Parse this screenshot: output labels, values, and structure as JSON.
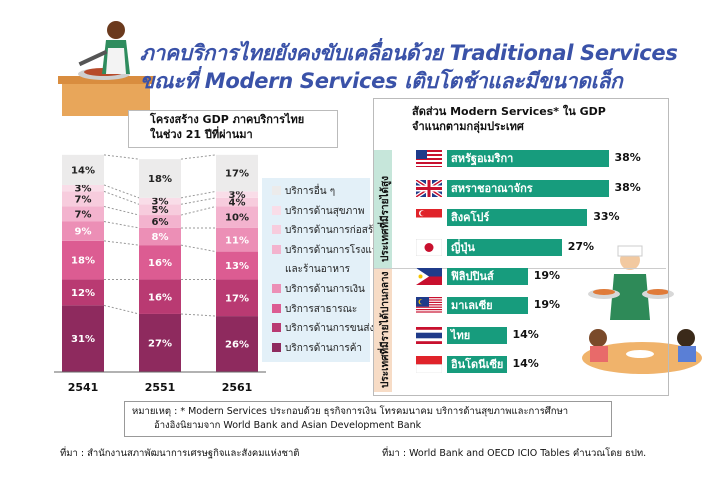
{
  "title_line1": "ภาคบริการไทยยังคงขับเคลื่อนด้วย Traditional Services",
  "title_line2": "ขณะที่ Modern Services เติบโตช้าและมีขนาดเล็ก",
  "chart_data": [
    {
      "type": "bar",
      "stacked": true,
      "title": "โครงสร้าง GDP ภาคบริการไทย ในช่วง 21 ปีที่ผ่านมา",
      "categories": [
        "2541",
        "2551",
        "2561"
      ],
      "unit": "%",
      "series": [
        {
          "name": "บริการด้านการค้า",
          "values": [
            31,
            27,
            26
          ],
          "color": "#8e2a5e"
        },
        {
          "name": "บริการด้านการขนส่ง",
          "values": [
            12,
            16,
            17
          ],
          "color": "#b93a72"
        },
        {
          "name": "บริการสาธารณะ",
          "values": [
            18,
            16,
            13
          ],
          "color": "#dc5c92"
        },
        {
          "name": "บริการด้านการเงิน",
          "values": [
            9,
            8,
            11
          ],
          "color": "#ec8fb6"
        },
        {
          "name": "บริการด้านการโรงแรมและร้านอาหาร",
          "values": [
            7,
            6,
            10
          ],
          "color": "#f3b3ce"
        },
        {
          "name": "บริการด้านการก่อสร้าง",
          "values": [
            7,
            5,
            4
          ],
          "color": "#f7ccdd"
        },
        {
          "name": "บริการด้านสุขภาพ",
          "values": [
            3,
            3,
            3
          ],
          "color": "#f9dde8"
        },
        {
          "name": "บริการอื่น ๆ",
          "values": [
            14,
            18,
            17
          ],
          "color": "#ecebeb"
        }
      ],
      "labels_bottom_to_top": [
        [
          "31%",
          "12%",
          "18%",
          "9%",
          "7%",
          "7%",
          "3%",
          "14%"
        ],
        [
          "27%",
          "16%",
          "16%",
          "8%",
          "6%",
          "5%",
          "3%",
          "18%"
        ],
        [
          "26%",
          "17%",
          "13%",
          "11%",
          "10%",
          "4%",
          "3%",
          "17%"
        ]
      ],
      "legend_top_to_bottom": [
        "บริการอื่น ๆ",
        "บริการด้านสุขภาพ",
        "บริการด้านการก่อสร้าง",
        "บริการด้านการโรงแรม",
        "และร้านอาหาร",
        "บริการด้านการเงิน",
        "บริการสาธารณะ",
        "บริการด้านการขนส่ง",
        "บริการด้านการค้า"
      ]
    },
    {
      "type": "bar",
      "orientation": "horizontal",
      "title": "สัดส่วน Modern Services* ใน GDP จำแนกตามกลุ่มประเทศ",
      "xlim": [
        0,
        40
      ],
      "groups": [
        {
          "label": "ประเทศที่มีรายได้สูง",
          "countries": [
            {
              "name": "สหรัฐอเมริกา",
              "value": 38,
              "label": "38%",
              "flag": "us-flag"
            },
            {
              "name": "สหราชอาณาจักร",
              "value": 38,
              "label": "38%",
              "flag": "uk-flag"
            },
            {
              "name": "สิงคโปร์",
              "value": 33,
              "label": "33%",
              "flag": "singapore-flag"
            },
            {
              "name": "ญี่ปุ่น",
              "value": 27,
              "label": "27%",
              "flag": "japan-flag"
            }
          ]
        },
        {
          "label": "ประเทศที่มีรายได้ปานกลาง",
          "countries": [
            {
              "name": "ฟิลิปปินส์",
              "value": 19,
              "label": "19%",
              "flag": "philippines-flag"
            },
            {
              "name": "มาเลเซีย",
              "value": 19,
              "label": "19%",
              "flag": "malaysia-flag"
            },
            {
              "name": "ไทย",
              "value": 14,
              "label": "14%",
              "flag": "thailand-flag"
            },
            {
              "name": "อินโดนีเซีย",
              "value": 14,
              "label": "14%",
              "flag": "indonesia-flag"
            }
          ]
        }
      ],
      "bar_color": "#179c7d"
    }
  ],
  "note_line1": "หมายเหตุ : * Modern Services ประกอบด้วย ธุรกิจการเงิน โทรคมนาคม บริการด้านสุขภาพและการศึกษา",
  "note_line2": "อ้างอิงนิยามจาก World Bank and Asian Development Bank",
  "source_left": "ที่มา : สำนักงานสภาพัฒนาการเศรษฐกิจและสังคมแห่งชาติ",
  "source_right": "ที่มา : World Bank and OECD ICIO Tables คำนวณโดย ธปท."
}
